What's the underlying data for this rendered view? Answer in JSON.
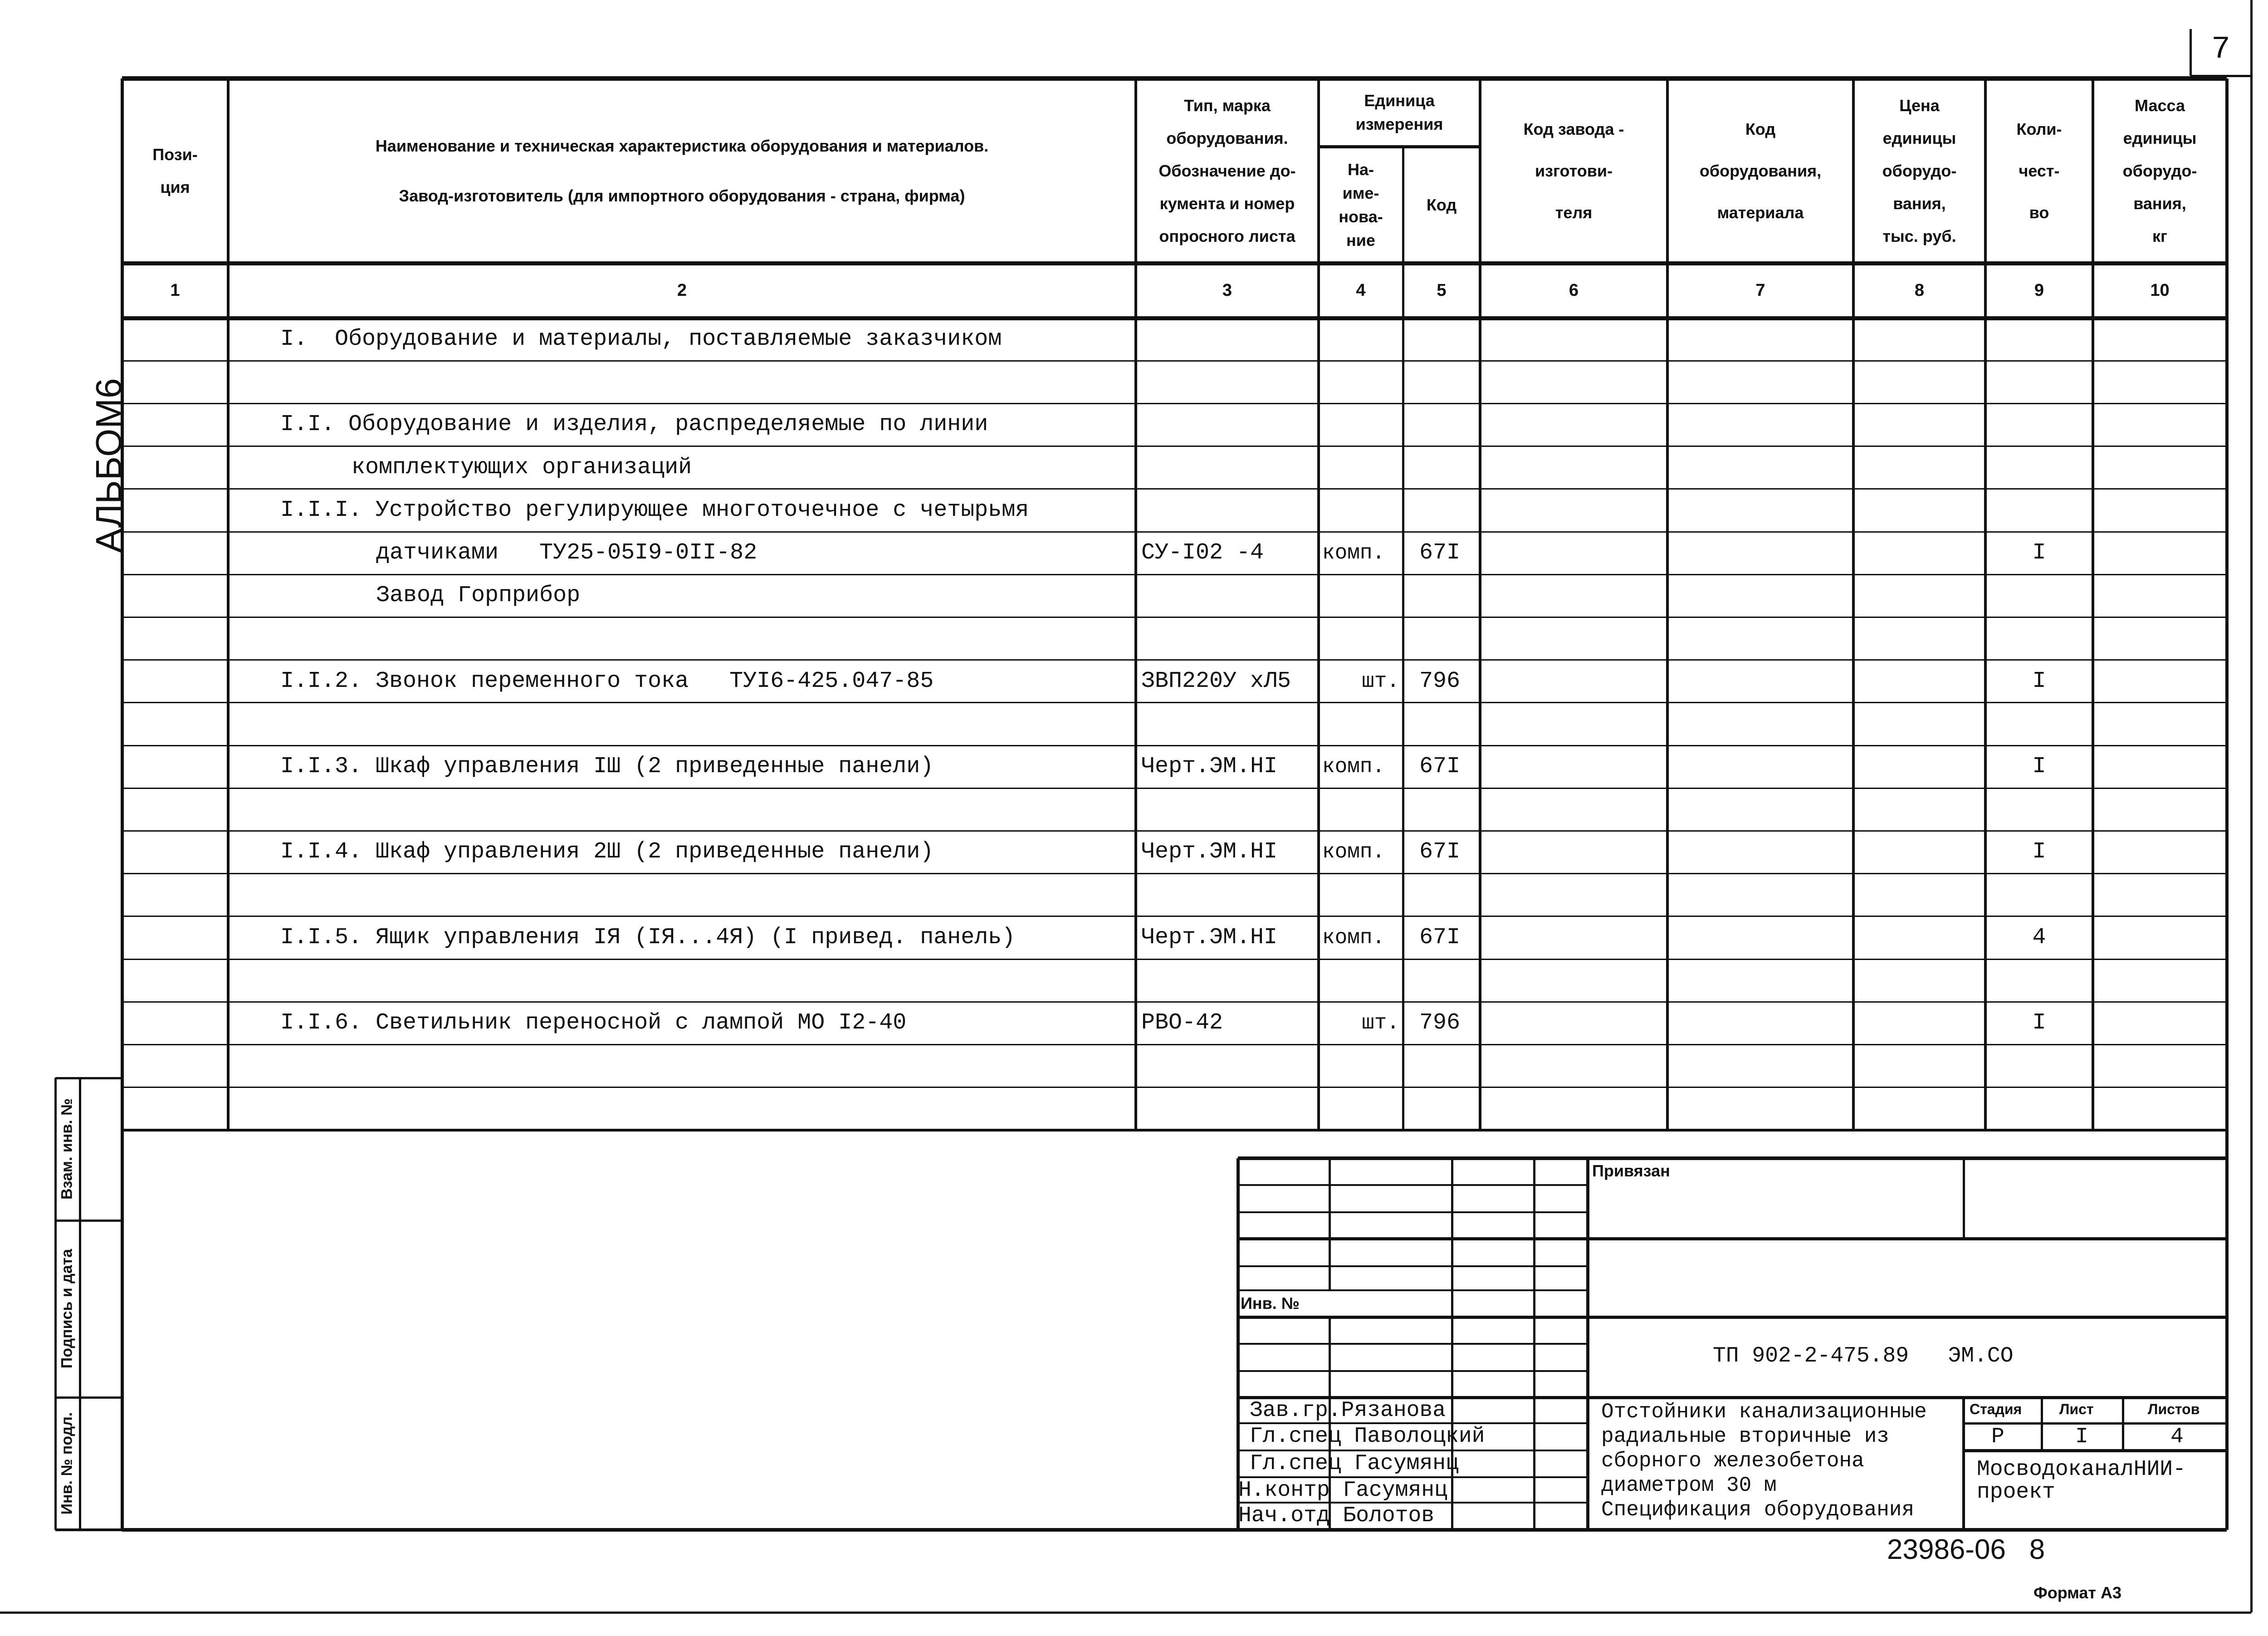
{
  "page_number": "7",
  "album_mark": "АЛЬБОМ6",
  "header": {
    "col1": [
      "Пози-",
      "ция"
    ],
    "col2": [
      "Наименование и техническая характеристика  оборудования и материалов.",
      "Завод-изготовитель  (для импортного оборудования -  страна, фирма)"
    ],
    "col3": [
      "Тип,   марка",
      "оборудования.",
      "Обозначение  до-",
      "кумента  и  номер",
      "опросного листа"
    ],
    "unit_group": [
      "Единица",
      "измерения"
    ],
    "col4": [
      "На-",
      "име-",
      "нова-",
      "ние"
    ],
    "col5": [
      "Код"
    ],
    "col6": [
      "Код  завода -",
      "изготови-",
      "теля"
    ],
    "col7": [
      "Код",
      "оборудования,",
      "материала"
    ],
    "col8": [
      "Цена",
      "единицы",
      "оборудо-",
      "вания,",
      "тыс. руб."
    ],
    "col9": [
      "Коли-",
      "чест-",
      "во"
    ],
    "col10": [
      "Масса",
      "единицы",
      "оборудо-",
      "вания,",
      "кг"
    ]
  },
  "column_numbers": [
    "1",
    "2",
    "3",
    "4",
    "5",
    "6",
    "7",
    "8",
    "9",
    "10"
  ],
  "rows": [
    {
      "name": "I.  Оборудование и материалы, поставляемые заказчиком",
      "indent": 0
    },
    {
      "name": ""
    },
    {
      "name": "I.I. Оборудование и изделия, распределяемые по линии",
      "indent": 0
    },
    {
      "name": "комплектующих организаций",
      "indent": 1
    },
    {
      "name": "I.I.I. Устройство регулирующее многоточечное с четырьмя",
      "indent": 0
    },
    {
      "name": "датчиками   ТУ25-05I9-0II-82",
      "indent": 2,
      "type": "СУ-I02 -4",
      "unit": "комп.",
      "code": "67I",
      "qty": "I"
    },
    {
      "name": "Завод Горприбор",
      "indent": 2
    },
    {
      "name": ""
    },
    {
      "name": "I.I.2. Звонок переменного тока   ТУI6-425.047-85",
      "indent": 0,
      "type": "ЗВП220У хЛ5",
      "unit": "шт.",
      "code": "796",
      "qty": "I"
    },
    {
      "name": ""
    },
    {
      "name": "I.I.3. Шкаф управления IШ (2 приведенные панели)",
      "indent": 0,
      "type": "Черт.ЭМ.НI",
      "unit": "комп.",
      "code": "67I",
      "qty": "I"
    },
    {
      "name": ""
    },
    {
      "name": "I.I.4. Шкаф управления 2Ш (2 приведенные панели)",
      "indent": 0,
      "type": "Черт.ЭМ.НI",
      "unit": "комп.",
      "code": "67I",
      "qty": "I"
    },
    {
      "name": ""
    },
    {
      "name": "I.I.5. Ящик управления IЯ (IЯ...4Я) (I привед. панель)",
      "indent": 0,
      "type": "Черт.ЭМ.НI",
      "unit": "комп.",
      "code": "67I",
      "qty": "4"
    },
    {
      "name": ""
    },
    {
      "name": "I.I.6. Светильник переносной с лампой МО I2-40",
      "indent": 0,
      "type": "РВО-42",
      "unit": "шт.",
      "code": "796",
      "qty": "I"
    },
    {
      "name": ""
    },
    {
      "name": ""
    }
  ],
  "side_stamp": {
    "inv_orig": "Инв. № подл.",
    "sign_date": "Подпись и дата",
    "replaced_inv": "Взам. инв. №"
  },
  "title_block": {
    "bound_label": "Привязан",
    "inv_label": "Инв. №",
    "doc_code": "ТП 902-2-475.89   ЭМ.СО",
    "signatures": [
      "Зав.гр.Рязанова",
      "Гл.спец Паволоцкий",
      "Гл.спец Гасумянц",
      "Н.контр Гасумянц",
      "Нач.отд Болотов"
    ],
    "title_lines": [
      "Отстойники канализационные",
      "радиальные вторичные из",
      "сборного железобетона",
      "диаметром 30 м",
      "Спецификация оборудования"
    ],
    "stage_label": "Стадия",
    "sheet_label": "Лист",
    "sheets_label": "Листов",
    "stage": "Р",
    "sheet": "I",
    "sheets": "4",
    "organization": [
      "МосводоканалНИИ-",
      "проект"
    ]
  },
  "archive_number": "23986-06   8",
  "format_label": "Формат А3"
}
